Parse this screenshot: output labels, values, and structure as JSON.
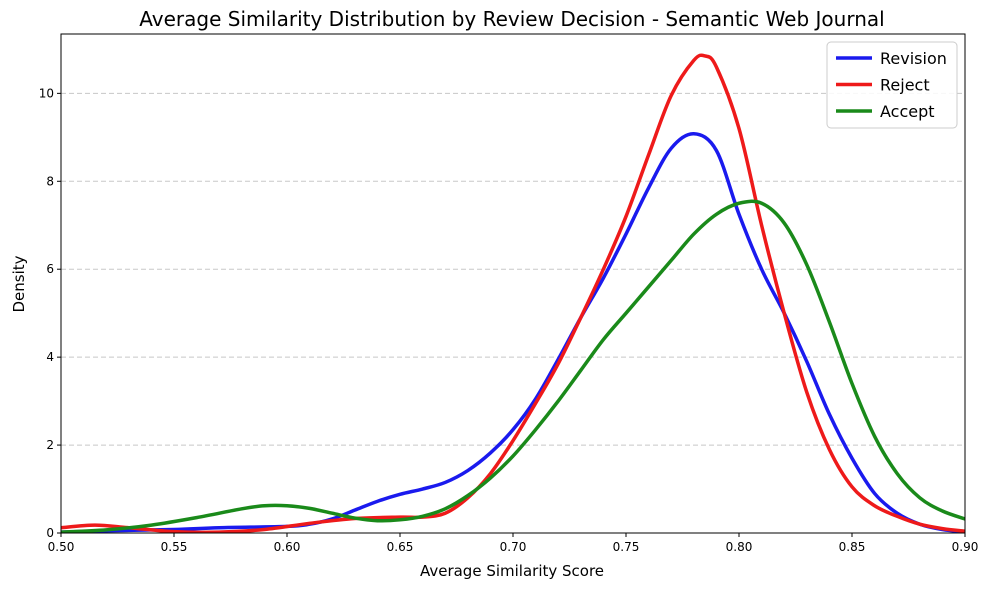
{
  "chart_data": {
    "type": "line",
    "title": "Average Similarity Distribution by Review Decision - Semantic Web Journal",
    "xlabel": "Average Similarity Score",
    "ylabel": "Density",
    "xlim": [
      0.5,
      0.9
    ],
    "ylim": [
      0,
      11.35
    ],
    "xticks": [
      "0.50",
      "0.55",
      "0.60",
      "0.65",
      "0.70",
      "0.75",
      "0.80",
      "0.85",
      "0.90"
    ],
    "yticks": [
      "0",
      "2",
      "4",
      "6",
      "8",
      "10"
    ],
    "grid": "horizontal dashed",
    "legend_position": "top-right",
    "series": [
      {
        "name": "Revision",
        "color": "#1a1aee",
        "points": [
          [
            0.5,
            0.02
          ],
          [
            0.52,
            0.05
          ],
          [
            0.55,
            0.08
          ],
          [
            0.57,
            0.12
          ],
          [
            0.6,
            0.15
          ],
          [
            0.61,
            0.2
          ],
          [
            0.62,
            0.32
          ],
          [
            0.63,
            0.52
          ],
          [
            0.64,
            0.72
          ],
          [
            0.65,
            0.88
          ],
          [
            0.66,
            1.0
          ],
          [
            0.67,
            1.15
          ],
          [
            0.68,
            1.42
          ],
          [
            0.69,
            1.82
          ],
          [
            0.7,
            2.35
          ],
          [
            0.71,
            3.05
          ],
          [
            0.72,
            3.95
          ],
          [
            0.73,
            4.9
          ],
          [
            0.74,
            5.8
          ],
          [
            0.75,
            6.8
          ],
          [
            0.76,
            7.85
          ],
          [
            0.77,
            8.75
          ],
          [
            0.78,
            9.08
          ],
          [
            0.79,
            8.7
          ],
          [
            0.8,
            7.25
          ],
          [
            0.81,
            6.0
          ],
          [
            0.82,
            5.0
          ],
          [
            0.83,
            3.9
          ],
          [
            0.84,
            2.7
          ],
          [
            0.85,
            1.7
          ],
          [
            0.86,
            0.9
          ],
          [
            0.87,
            0.45
          ],
          [
            0.88,
            0.2
          ],
          [
            0.89,
            0.08
          ],
          [
            0.9,
            0.03
          ]
        ]
      },
      {
        "name": "Reject",
        "color": "#ee1a1a",
        "points": [
          [
            0.5,
            0.12
          ],
          [
            0.515,
            0.18
          ],
          [
            0.53,
            0.12
          ],
          [
            0.55,
            0.03
          ],
          [
            0.57,
            0.02
          ],
          [
            0.59,
            0.08
          ],
          [
            0.61,
            0.22
          ],
          [
            0.63,
            0.33
          ],
          [
            0.65,
            0.36
          ],
          [
            0.66,
            0.36
          ],
          [
            0.67,
            0.45
          ],
          [
            0.68,
            0.8
          ],
          [
            0.69,
            1.35
          ],
          [
            0.7,
            2.1
          ],
          [
            0.71,
            2.95
          ],
          [
            0.72,
            3.85
          ],
          [
            0.73,
            4.9
          ],
          [
            0.74,
            6.0
          ],
          [
            0.75,
            7.2
          ],
          [
            0.76,
            8.6
          ],
          [
            0.77,
            9.95
          ],
          [
            0.78,
            10.75
          ],
          [
            0.785,
            10.85
          ],
          [
            0.79,
            10.6
          ],
          [
            0.8,
            9.2
          ],
          [
            0.81,
            7.0
          ],
          [
            0.82,
            5.0
          ],
          [
            0.83,
            3.2
          ],
          [
            0.84,
            1.9
          ],
          [
            0.85,
            1.05
          ],
          [
            0.86,
            0.62
          ],
          [
            0.87,
            0.38
          ],
          [
            0.88,
            0.2
          ],
          [
            0.89,
            0.1
          ],
          [
            0.9,
            0.04
          ]
        ]
      },
      {
        "name": "Accept",
        "color": "#1a8a1a",
        "points": [
          [
            0.5,
            0.02
          ],
          [
            0.52,
            0.07
          ],
          [
            0.54,
            0.18
          ],
          [
            0.56,
            0.35
          ],
          [
            0.58,
            0.55
          ],
          [
            0.59,
            0.62
          ],
          [
            0.6,
            0.62
          ],
          [
            0.61,
            0.56
          ],
          [
            0.62,
            0.45
          ],
          [
            0.63,
            0.34
          ],
          [
            0.64,
            0.28
          ],
          [
            0.65,
            0.3
          ],
          [
            0.66,
            0.38
          ],
          [
            0.67,
            0.55
          ],
          [
            0.68,
            0.85
          ],
          [
            0.69,
            1.25
          ],
          [
            0.7,
            1.75
          ],
          [
            0.71,
            2.35
          ],
          [
            0.72,
            3.0
          ],
          [
            0.73,
            3.7
          ],
          [
            0.74,
            4.4
          ],
          [
            0.75,
            5.0
          ],
          [
            0.76,
            5.6
          ],
          [
            0.77,
            6.2
          ],
          [
            0.78,
            6.8
          ],
          [
            0.79,
            7.25
          ],
          [
            0.8,
            7.5
          ],
          [
            0.81,
            7.5
          ],
          [
            0.82,
            7.05
          ],
          [
            0.83,
            6.1
          ],
          [
            0.84,
            4.8
          ],
          [
            0.85,
            3.4
          ],
          [
            0.86,
            2.2
          ],
          [
            0.87,
            1.35
          ],
          [
            0.88,
            0.8
          ],
          [
            0.89,
            0.5
          ],
          [
            0.9,
            0.32
          ]
        ]
      }
    ]
  }
}
